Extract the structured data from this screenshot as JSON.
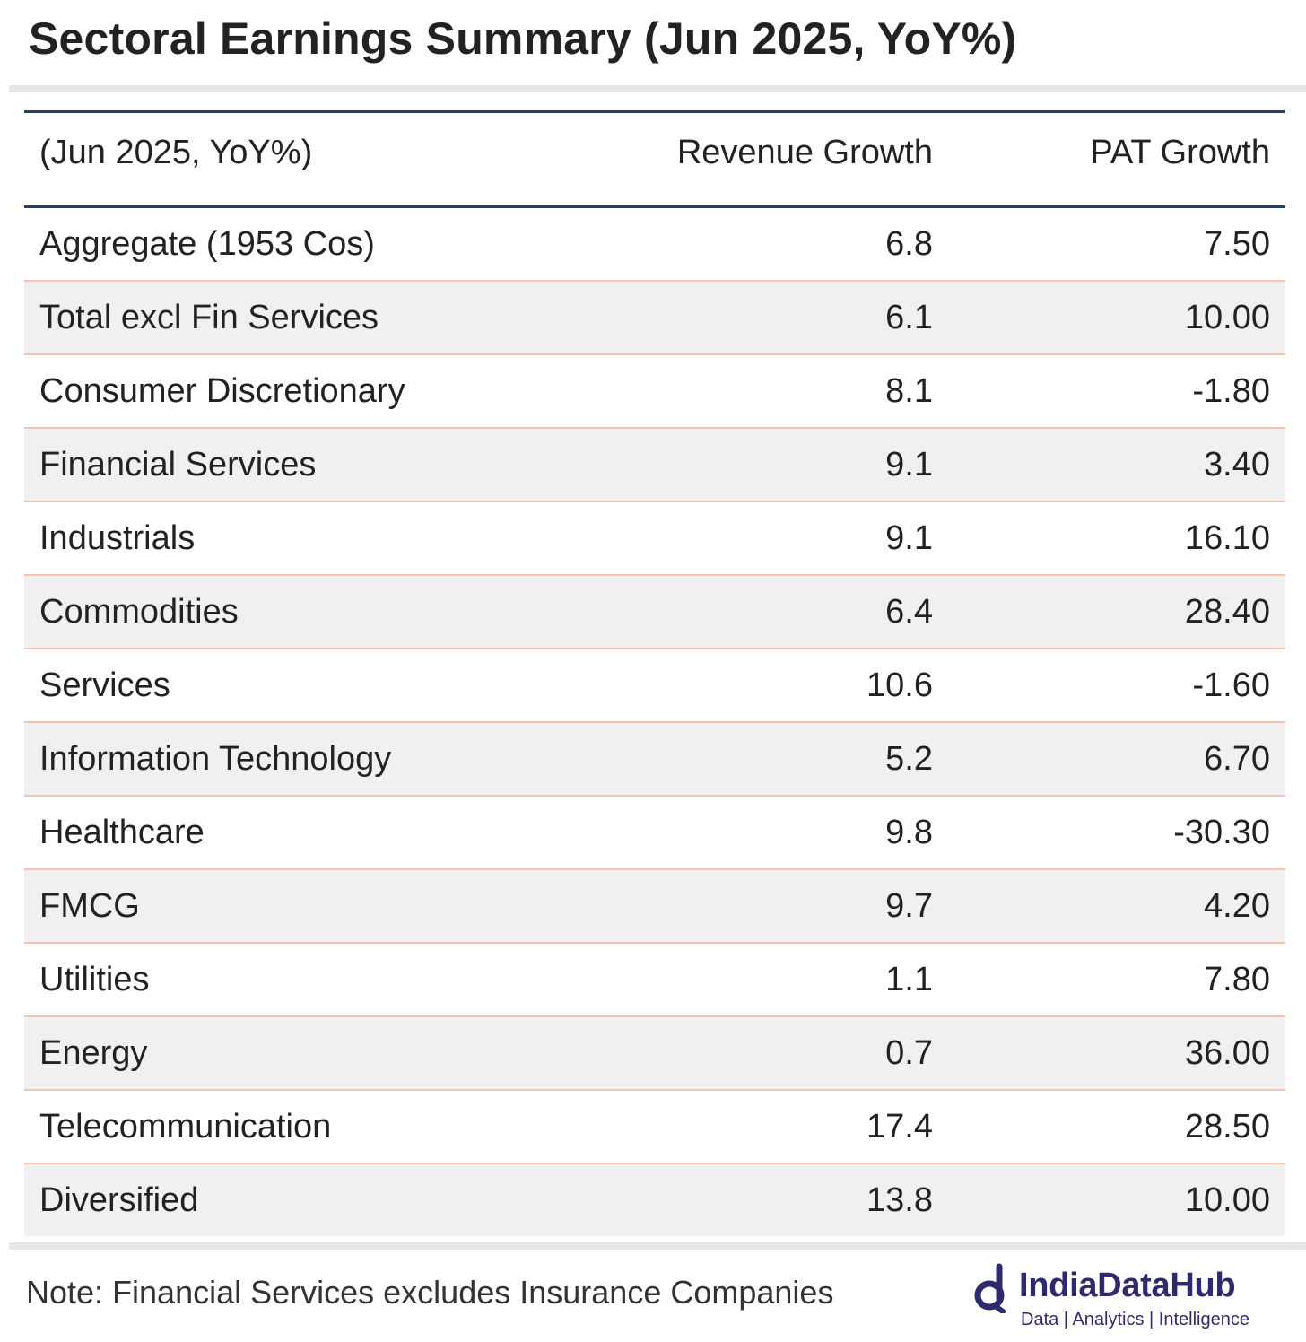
{
  "title": "Sectoral Earnings Summary (Jun 2025, YoY%)",
  "chart_data": {
    "type": "table",
    "title": "Sectoral Earnings Summary (Jun 2025, YoY%)",
    "columns": [
      "(Jun 2025, YoY%)",
      "Revenue Growth",
      "PAT Growth"
    ],
    "rows": [
      {
        "name": "Aggregate (1953 Cos)",
        "revenue": "6.8",
        "pat": "7.50"
      },
      {
        "name": "Total excl Fin Services",
        "revenue": "6.1",
        "pat": "10.00"
      },
      {
        "name": "Consumer Discretionary",
        "revenue": "8.1",
        "pat": "-1.80"
      },
      {
        "name": "Financial Services",
        "revenue": "9.1",
        "pat": "3.40"
      },
      {
        "name": "Industrials",
        "revenue": "9.1",
        "pat": "16.10"
      },
      {
        "name": "Commodities",
        "revenue": "6.4",
        "pat": "28.40"
      },
      {
        "name": "Services",
        "revenue": "10.6",
        "pat": "-1.60"
      },
      {
        "name": "Information Technology",
        "revenue": "5.2",
        "pat": "6.70"
      },
      {
        "name": "Healthcare",
        "revenue": "9.8",
        "pat": "-30.30"
      },
      {
        "name": "FMCG",
        "revenue": "9.7",
        "pat": "4.20"
      },
      {
        "name": "Utilities",
        "revenue": "1.1",
        "pat": "7.80"
      },
      {
        "name": "Energy",
        "revenue": "0.7",
        "pat": "36.00"
      },
      {
        "name": "Telecommunication",
        "revenue": "17.4",
        "pat": "28.50"
      },
      {
        "name": "Diversified",
        "revenue": "13.8",
        "pat": "10.00"
      }
    ]
  },
  "note": "Note: Financial Services excludes Insurance Companies",
  "brand": {
    "name": "IndiaDataHub",
    "tagline": "Data | Analytics | Intelligence",
    "icon": "indiadatahub-logo-icon",
    "color": "#2e2a6b"
  },
  "colors": {
    "header_rule": "#1f3f6e",
    "row_divider": "#f2c4b3",
    "alt_row": "#f0f0f0"
  }
}
